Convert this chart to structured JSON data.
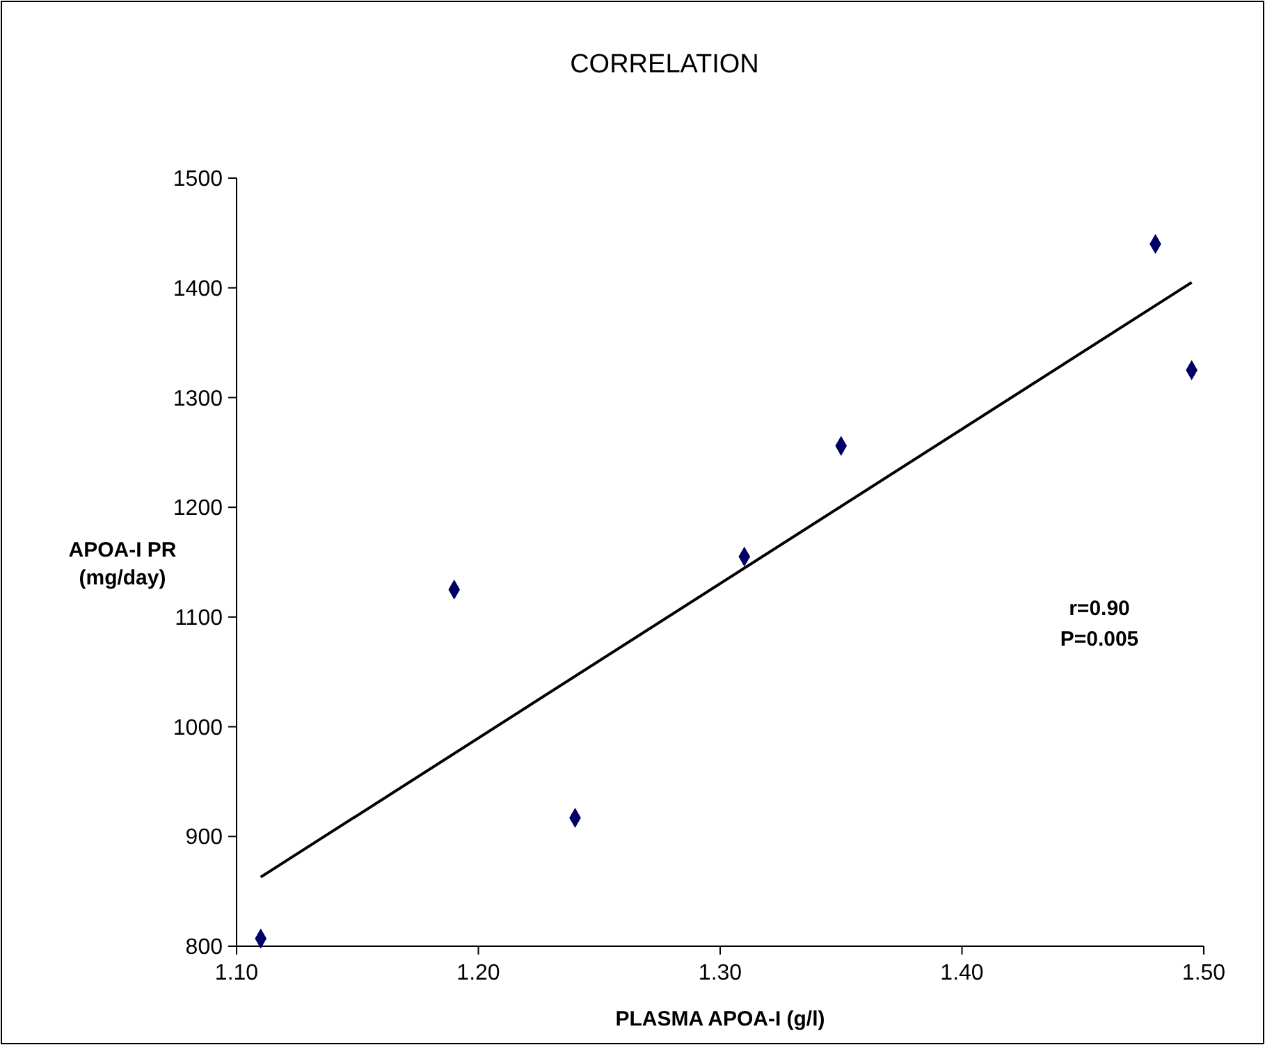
{
  "chart_data": {
    "type": "scatter",
    "title": "CORRELATION",
    "xlabel": "PLASMA APOA-I (g/l)",
    "ylabel": "APOA-I PR\n(mg/day)",
    "x": [
      1.11,
      1.19,
      1.24,
      1.31,
      1.35,
      1.48,
      1.495
    ],
    "series": [
      {
        "color": "#000066",
        "marker": "diamond",
        "values": [
          807,
          1125,
          917,
          1155,
          1256,
          1440,
          1325
        ]
      },
      {
        "type": "line",
        "color": "#000000",
        "x": [
          1.11,
          1.495
        ],
        "values": [
          863,
          1405
        ]
      }
    ],
    "xlim": [
      1.1,
      1.5
    ],
    "xticks": [
      {
        "value": 1.1,
        "label": "1.10"
      },
      {
        "value": 1.2,
        "label": "1.20"
      },
      {
        "value": 1.3,
        "label": "1.30"
      },
      {
        "value": 1.4,
        "label": "1.40"
      },
      {
        "value": 1.5,
        "label": "1.50"
      }
    ],
    "ylim": [
      800,
      1500
    ],
    "yticks": [
      800,
      900,
      1000,
      1100,
      1200,
      1300,
      1400,
      1500
    ],
    "annotations": [
      "r=0.90",
      "P=0.005"
    ],
    "grid": false
  }
}
